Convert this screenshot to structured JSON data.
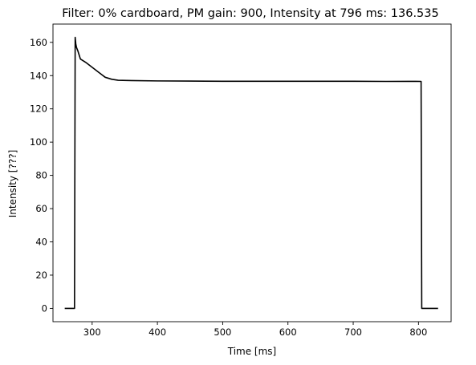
{
  "chart_data": {
    "type": "line",
    "title": "Filter: 0% cardboard, PM gain: 900, Intensity at 796 ms: 136.535",
    "xlabel": "Time [ms]",
    "ylabel": "Intensity [???]",
    "xlim": [
      240,
      850
    ],
    "ylim": [
      -8,
      171
    ],
    "xticks": [
      300,
      400,
      500,
      600,
      700,
      800
    ],
    "yticks": [
      0,
      20,
      40,
      60,
      80,
      100,
      120,
      140,
      160
    ],
    "grid": false,
    "legend": "none",
    "line_color": "#000000",
    "series": [
      {
        "x": [
          258,
          273,
          274,
          275,
          276,
          278,
          282,
          290,
          300,
          310,
          320,
          330,
          340,
          360,
          400,
          450,
          500,
          550,
          600,
          650,
          700,
          750,
          796,
          804,
          805,
          806,
          830
        ],
        "y": [
          0,
          0,
          163,
          159,
          157,
          155,
          150,
          148,
          145,
          142,
          139,
          137.8,
          137.2,
          137,
          136.8,
          136.7,
          136.6,
          136.6,
          136.6,
          136.6,
          136.6,
          136.5,
          136.535,
          136.5,
          0,
          0,
          0
        ]
      }
    ]
  }
}
